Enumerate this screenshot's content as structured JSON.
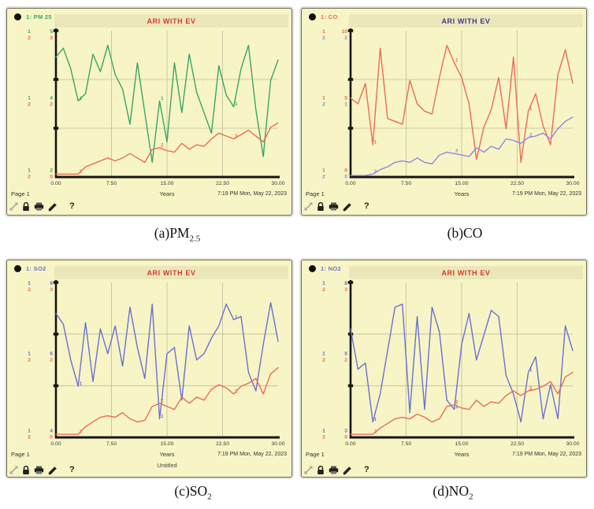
{
  "shared": {
    "x_label": "Years",
    "timestamp": "7:19 PM   Mon, May 22, 2023",
    "page_label": "Page 1",
    "untitled_label": "Untitled",
    "help_glyph": "?",
    "x_ticks": [
      "0.00",
      "7.50",
      "15.00",
      "22.50",
      "30.00"
    ]
  },
  "captions": {
    "a_prefix": "(a)PM",
    "a_sub": "2.5",
    "b": "(b)CO",
    "c_prefix": "(c)SO",
    "c_sub": "2",
    "d_prefix": "(d)NO",
    "d_sub": "2"
  },
  "colors": {
    "panel_bg": "#f7f5c5",
    "titlebar_bg": "#ebe7bb",
    "grid": "#bcbc9c",
    "axis": "#161616",
    "green": "#3aa566",
    "salmon": "#ee6a58",
    "purple": "#9186e0",
    "blue": "#6a70d4",
    "title_red": "#d43c2c",
    "title_navy": "#3c3c8e"
  },
  "chart_data": [
    {
      "type": "line",
      "panel": "a",
      "legend": "1: PM 25",
      "title": "ARI WITH EV",
      "title_color": "#d43c2c",
      "x_label": "Years",
      "x_range": [
        0,
        30
      ],
      "x_ticks": [
        "0.00",
        "7.50",
        "15.00",
        "22.50",
        "30.00"
      ],
      "grid": true,
      "marker_indices": [
        3,
        14,
        24
      ],
      "y_axis_ticks": [
        [
          "5",
          "3"
        ],
        [
          "4",
          "2"
        ],
        [
          "2",
          "0"
        ]
      ],
      "series": [
        {
          "num": "1",
          "name": "PM 25",
          "color": "#3aa566",
          "values_norm": [
            0.82,
            0.88,
            0.74,
            0.52,
            0.57,
            0.84,
            0.72,
            0.9,
            0.7,
            0.6,
            0.36,
            0.78,
            0.44,
            0.1,
            0.52,
            0.24,
            0.78,
            0.44,
            0.84,
            0.58,
            0.44,
            0.3,
            0.76,
            0.56,
            0.48,
            0.74,
            0.9,
            0.46,
            0.14,
            0.66,
            0.8
          ]
        },
        {
          "num": "2",
          "color": "#ee6a58",
          "values_norm": [
            0.02,
            0.02,
            0.02,
            0.02,
            0.07,
            0.09,
            0.11,
            0.13,
            0.11,
            0.13,
            0.16,
            0.13,
            0.1,
            0.19,
            0.2,
            0.18,
            0.17,
            0.23,
            0.19,
            0.22,
            0.21,
            0.26,
            0.3,
            0.28,
            0.26,
            0.29,
            0.32,
            0.28,
            0.24,
            0.34,
            0.37
          ]
        }
      ]
    },
    {
      "type": "line",
      "panel": "b",
      "legend": "1: CO",
      "title": "ARI WITH EV",
      "title_color": "#3c3c8e",
      "x_label": "Years",
      "x_range": [
        0,
        30
      ],
      "x_ticks": [
        "0.00",
        "7.50",
        "15.00",
        "22.50",
        "30.00"
      ],
      "grid": true,
      "marker_indices": [
        3,
        14,
        24
      ],
      "y_axis_ticks": [
        [
          "10",
          "2"
        ],
        [
          "5",
          "1"
        ],
        [
          "0",
          "0"
        ]
      ],
      "series": [
        {
          "num": "1",
          "name": "CO",
          "color": "#ee6a58",
          "values_norm": [
            0.54,
            0.5,
            0.64,
            0.22,
            0.88,
            0.4,
            0.38,
            0.36,
            0.66,
            0.5,
            0.45,
            0.43,
            0.68,
            0.9,
            0.78,
            0.68,
            0.5,
            0.12,
            0.34,
            0.46,
            0.68,
            0.33,
            0.82,
            0.1,
            0.45,
            0.57,
            0.35,
            0.22,
            0.7,
            0.87,
            0.64
          ]
        },
        {
          "num": "2",
          "color": "#9186e0",
          "values_norm": [
            0.01,
            0.01,
            0.01,
            0.02,
            0.05,
            0.07,
            0.1,
            0.11,
            0.1,
            0.13,
            0.1,
            0.09,
            0.15,
            0.17,
            0.16,
            0.15,
            0.14,
            0.2,
            0.17,
            0.21,
            0.19,
            0.26,
            0.25,
            0.23,
            0.27,
            0.28,
            0.3,
            0.26,
            0.33,
            0.38,
            0.41
          ]
        }
      ]
    },
    {
      "type": "line",
      "panel": "c",
      "legend": "1: SO2",
      "title": "ARI WITH EV",
      "title_color": "#d43c2c",
      "x_label": "Years",
      "x_range": [
        0,
        30
      ],
      "x_ticks": [
        "0.00",
        "7.50",
        "15.00",
        "22.50",
        "30.00"
      ],
      "grid": true,
      "untitled": "Untitled",
      "marker_indices": [
        3,
        14,
        24
      ],
      "y_axis_ticks": [
        [
          "8",
          "3"
        ],
        [
          "6",
          "2"
        ],
        [
          "4",
          "0"
        ]
      ],
      "series": [
        {
          "num": "1",
          "name": "SO2",
          "color": "#6a70d4",
          "values_norm": [
            0.8,
            0.73,
            0.5,
            0.33,
            0.74,
            0.36,
            0.7,
            0.54,
            0.72,
            0.46,
            0.84,
            0.58,
            0.38,
            0.86,
            0.12,
            0.54,
            0.58,
            0.24,
            0.72,
            0.5,
            0.54,
            0.64,
            0.72,
            0.86,
            0.76,
            0.78,
            0.42,
            0.3,
            0.6,
            0.87,
            0.62
          ]
        },
        {
          "num": "2",
          "color": "#ee6a58",
          "values_norm": [
            0.02,
            0.02,
            0.02,
            0.02,
            0.07,
            0.1,
            0.13,
            0.14,
            0.13,
            0.16,
            0.12,
            0.1,
            0.11,
            0.2,
            0.22,
            0.2,
            0.18,
            0.26,
            0.22,
            0.26,
            0.24,
            0.31,
            0.34,
            0.32,
            0.28,
            0.33,
            0.35,
            0.38,
            0.28,
            0.41,
            0.45
          ]
        }
      ]
    },
    {
      "type": "line",
      "panel": "d",
      "legend": "1: NO2",
      "title": "ARI WITH EV",
      "title_color": "#d43c2c",
      "x_label": "Years",
      "x_range": [
        0,
        30
      ],
      "x_ticks": [
        "0.00",
        "7.50",
        "15.00",
        "22.50",
        "30.00"
      ],
      "grid": true,
      "marker_indices": [
        3,
        14,
        24
      ],
      "y_axis_ticks": [
        [
          "8",
          "3"
        ],
        [
          "5",
          "2"
        ],
        [
          "3",
          "0"
        ]
      ],
      "series": [
        {
          "num": "1",
          "name": "NO2",
          "color": "#6a70d4",
          "values_norm": [
            0.7,
            0.44,
            0.48,
            0.1,
            0.28,
            0.56,
            0.84,
            0.86,
            0.16,
            0.78,
            0.18,
            0.84,
            0.68,
            0.24,
            0.18,
            0.6,
            0.8,
            0.5,
            0.66,
            0.82,
            0.78,
            0.4,
            0.28,
            0.1,
            0.42,
            0.52,
            0.12,
            0.34,
            0.12,
            0.72,
            0.56
          ]
        },
        {
          "num": "2",
          "color": "#ee6a58",
          "values_norm": [
            0.02,
            0.02,
            0.02,
            0.02,
            0.06,
            0.09,
            0.12,
            0.13,
            0.12,
            0.15,
            0.13,
            0.1,
            0.12,
            0.2,
            0.21,
            0.19,
            0.18,
            0.24,
            0.2,
            0.23,
            0.22,
            0.27,
            0.3,
            0.27,
            0.3,
            0.31,
            0.33,
            0.36,
            0.28,
            0.39,
            0.42
          ]
        }
      ]
    }
  ]
}
